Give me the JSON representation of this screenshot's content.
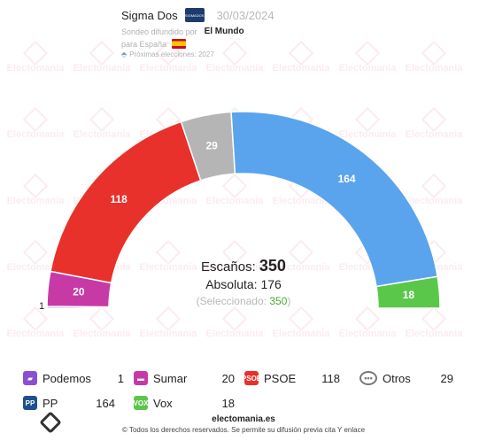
{
  "header": {
    "pollster": "Sigma Dos",
    "pollster_logo_text": "SIGMADOS",
    "date": "30/03/2024",
    "disseminated_by": "Sondeo difundido por",
    "media": "El Mundo",
    "scope": "para España",
    "next_elections": "Próximas elecciones: 2027"
  },
  "watermark": "Electomania",
  "chart_data": {
    "type": "hemicycle",
    "total_seats": 350,
    "majority": 176,
    "selected_seats": 350,
    "parties": [
      {
        "name": "Podemos",
        "seats": 1,
        "color": "#8a4fd3",
        "icon": "podemos-icon"
      },
      {
        "name": "Sumar",
        "seats": 20,
        "color": "#c73aa6",
        "icon": "sumar-icon"
      },
      {
        "name": "PSOE",
        "seats": 118,
        "color": "#e8312b",
        "icon": "psoe-icon"
      },
      {
        "name": "Otros",
        "seats": 29,
        "color": "#b5b5b5",
        "icon": "otros-icon"
      },
      {
        "name": "PP",
        "seats": 164,
        "color": "#5aa4ee",
        "icon": "pp-icon"
      },
      {
        "name": "Vox",
        "seats": 18,
        "color": "#5ac74a",
        "icon": "vox-icon"
      }
    ]
  },
  "center": {
    "seats_label": "Escaños:",
    "seats_value": "350",
    "absolute_label": "Absoluta:",
    "absolute_value": "176",
    "selected_label": "(Seleccionado:",
    "selected_value": "350",
    "selected_close": ")"
  },
  "legend_icons": {
    "psoe": "PSOE",
    "pp": "PP",
    "vox": "VOX"
  },
  "footer": {
    "site": "electomania.es",
    "rights": "© Todos los derechos reservados. Se permite su difusión previa cita Y enlace"
  }
}
